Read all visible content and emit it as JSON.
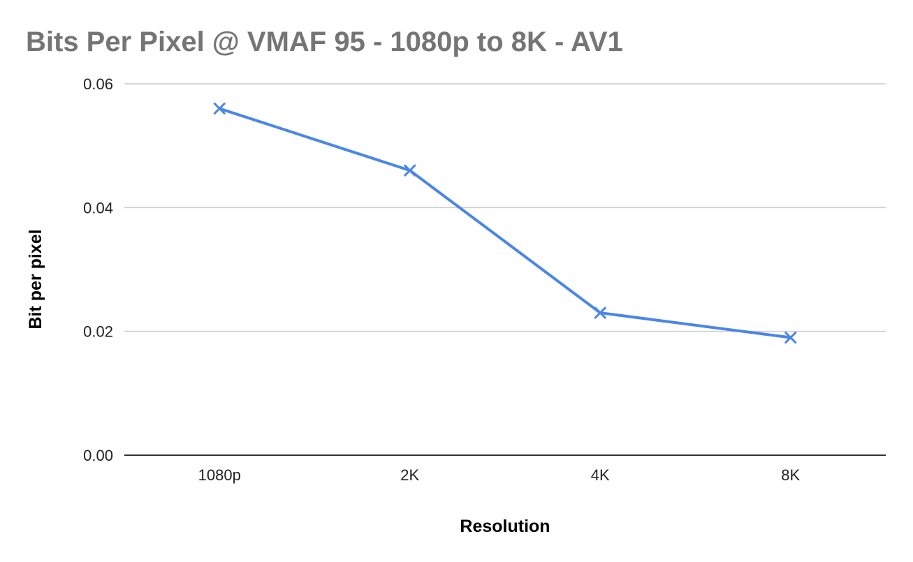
{
  "chart_data": {
    "type": "line",
    "title": "Bits Per Pixel @ VMAF 95 - 1080p to 8K - AV1",
    "xlabel": "Resolution",
    "ylabel": "Bit per pixel",
    "categories": [
      "1080p",
      "2K",
      "4K",
      "8K"
    ],
    "series": [
      {
        "values": [
          0.056,
          0.046,
          0.023,
          0.019
        ],
        "color": "#4a86e8",
        "marker": "x-mark-icon"
      }
    ],
    "ylim": [
      0,
      0.06
    ],
    "yticks": [
      "0.00",
      "0.02",
      "0.04",
      "0.06"
    ],
    "grid": true,
    "legend": "none"
  }
}
